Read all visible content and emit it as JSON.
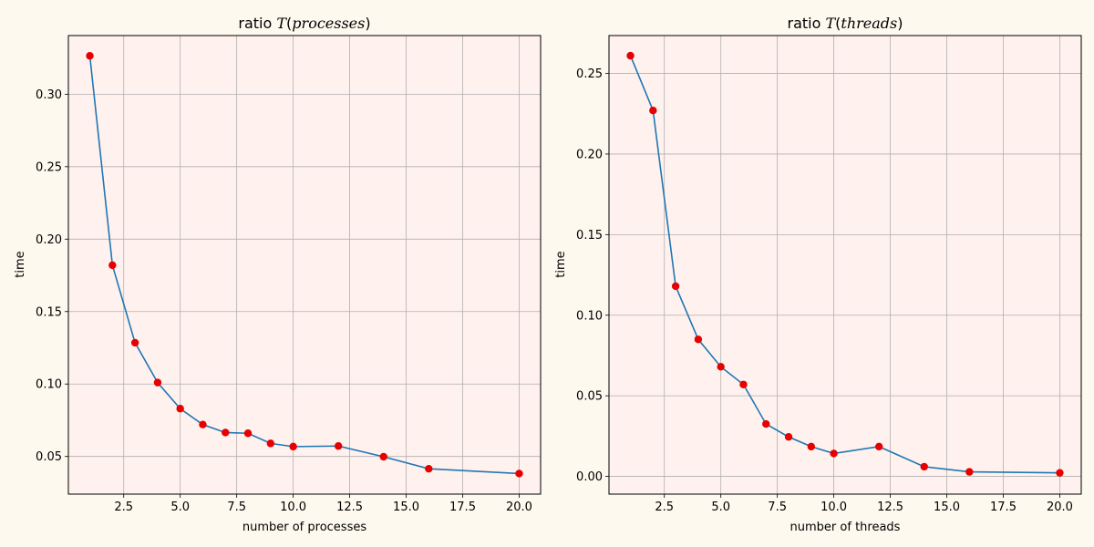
{
  "colors": {
    "figure_bg": "#fdf9ee",
    "axes_bg": "#fff1ee",
    "line": "#1f77b4",
    "marker": "#e60000",
    "grid": "#b0b0b0"
  },
  "chart_data": [
    {
      "type": "line",
      "title_prefix": "ratio ",
      "title_math_T": "T",
      "title_math_open": "(",
      "title_math_var": "processes",
      "title_math_close": ")",
      "xlabel": "number of processes",
      "ylabel": "time",
      "grid": true,
      "x": [
        1,
        2,
        3,
        4,
        5,
        6,
        7,
        8,
        9,
        10,
        12,
        14,
        16,
        20
      ],
      "series": [
        {
          "values": [
            0.3265,
            0.182,
            0.1285,
            0.101,
            0.083,
            0.072,
            0.0665,
            0.066,
            0.059,
            0.0568,
            0.0572,
            0.0498,
            0.0415,
            0.0382
          ]
        }
      ],
      "xlim": [
        0.05,
        20.95
      ],
      "ylim": [
        0.024,
        0.3405
      ],
      "xticks": [
        2.5,
        5.0,
        7.5,
        10.0,
        12.5,
        15.0,
        17.5,
        20.0
      ],
      "xtick_labels": [
        "2.5",
        "5.0",
        "7.5",
        "10.0",
        "12.5",
        "15.0",
        "17.5",
        "20.0"
      ],
      "yticks": [
        0.05,
        0.1,
        0.15,
        0.2,
        0.25,
        0.3
      ],
      "ytick_labels": [
        "0.05",
        "0.10",
        "0.15",
        "0.20",
        "0.25",
        "0.30"
      ]
    },
    {
      "type": "line",
      "title_prefix": "ratio ",
      "title_math_T": "T",
      "title_math_open": "(",
      "title_math_var": "threads",
      "title_math_close": ")",
      "xlabel": "number of threads",
      "ylabel": "time",
      "grid": true,
      "x": [
        1,
        2,
        3,
        4,
        5,
        6,
        7,
        8,
        9,
        10,
        12,
        14,
        16,
        20
      ],
      "series": [
        {
          "values": [
            0.261,
            0.227,
            0.118,
            0.085,
            0.068,
            0.057,
            0.0325,
            0.0245,
            0.0185,
            0.0142,
            0.0185,
            0.006,
            0.0028,
            0.0022
          ]
        }
      ],
      "xlim": [
        0.05,
        20.95
      ],
      "ylim": [
        -0.011,
        0.2735
      ],
      "xticks": [
        2.5,
        5.0,
        7.5,
        10.0,
        12.5,
        15.0,
        17.5,
        20.0
      ],
      "xtick_labels": [
        "2.5",
        "5.0",
        "7.5",
        "10.0",
        "12.5",
        "15.0",
        "17.5",
        "20.0"
      ],
      "yticks": [
        0.0,
        0.05,
        0.1,
        0.15,
        0.2,
        0.25
      ],
      "ytick_labels": [
        "0.00",
        "0.05",
        "0.10",
        "0.15",
        "0.20",
        "0.25"
      ]
    }
  ]
}
